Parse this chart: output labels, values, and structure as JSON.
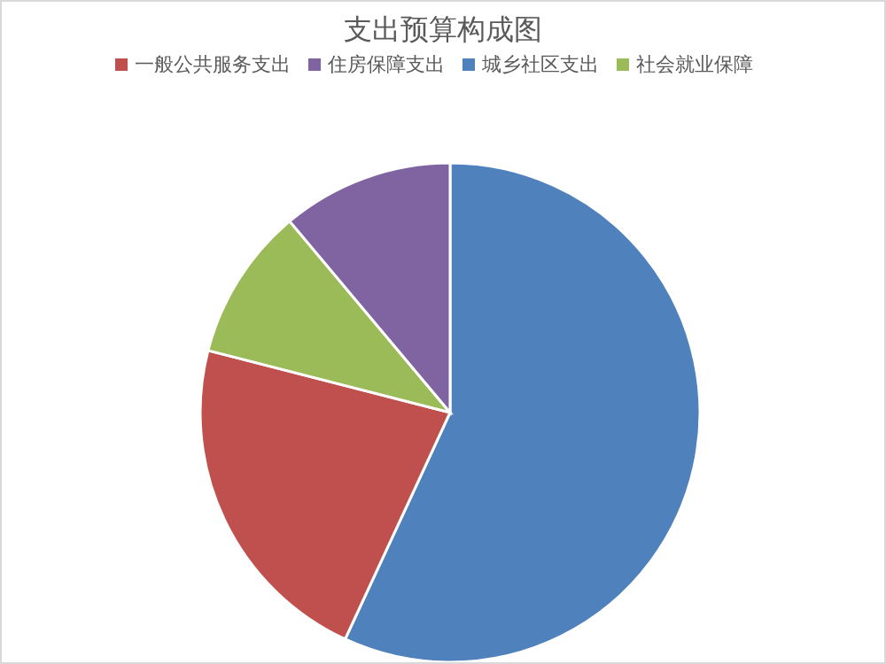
{
  "chart_data": {
    "type": "pie",
    "title": "支出预算构成图",
    "categories": [
      "城乡社区支出",
      "一般公共服务支出",
      "社会就业保障",
      "住房保障支出"
    ],
    "values": [
      56.9,
      22.1,
      9.9,
      11.1
    ],
    "colors": [
      "#4f81bd",
      "#c0504d",
      "#9bbb59",
      "#8064a2"
    ],
    "legend": "top"
  }
}
